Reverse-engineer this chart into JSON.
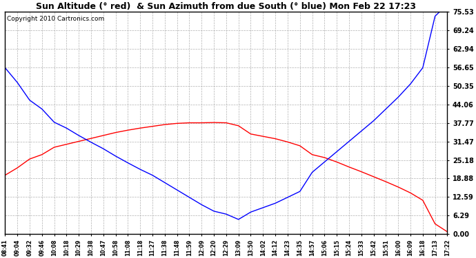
{
  "title": "Sun Altitude (° red)  & Sun Azimuth from due South (° blue) Mon Feb 22 17:23",
  "copyright": "Copyright 2010 Cartronics.com",
  "yticks": [
    0.0,
    6.29,
    12.59,
    18.88,
    25.18,
    31.47,
    37.77,
    44.06,
    50.35,
    56.65,
    62.94,
    69.24,
    75.53
  ],
  "ymin": 0.0,
  "ymax": 75.53,
  "xtick_labels": [
    "08:41",
    "09:04",
    "09:32",
    "09:46",
    "10:08",
    "10:18",
    "10:29",
    "10:38",
    "10:47",
    "10:58",
    "11:08",
    "11:18",
    "11:27",
    "11:38",
    "11:48",
    "11:59",
    "12:09",
    "12:20",
    "12:29",
    "13:09",
    "13:50",
    "14:02",
    "14:12",
    "14:23",
    "14:35",
    "14:57",
    "15:06",
    "15:15",
    "15:24",
    "15:33",
    "15:42",
    "15:51",
    "16:00",
    "16:09",
    "16:18",
    "17:13",
    "17:22"
  ],
  "bg_color": "#ffffff",
  "plot_bg_color": "#ffffff",
  "grid_color": "#b0b0b0",
  "red_line": [
    20.0,
    22.5,
    25.5,
    27.0,
    29.5,
    30.5,
    31.5,
    32.5,
    33.5,
    34.5,
    35.3,
    36.0,
    36.6,
    37.2,
    37.6,
    37.8,
    37.8,
    37.9,
    37.8,
    36.8,
    34.0,
    33.2,
    32.4,
    31.3,
    30.0,
    27.0,
    26.0,
    24.5,
    22.8,
    21.2,
    19.5,
    17.8,
    16.0,
    14.0,
    11.5,
    3.5,
    0.8
  ],
  "blue_line": [
    56.5,
    51.5,
    45.5,
    42.5,
    38.0,
    36.0,
    33.5,
    31.2,
    29.0,
    26.5,
    24.2,
    22.0,
    20.0,
    17.5,
    15.0,
    12.5,
    10.0,
    7.8,
    6.8,
    5.0,
    7.5,
    9.0,
    10.5,
    12.5,
    14.5,
    21.0,
    24.5,
    28.0,
    31.5,
    35.0,
    38.5,
    42.5,
    46.5,
    51.0,
    56.5,
    74.0,
    78.0
  ]
}
